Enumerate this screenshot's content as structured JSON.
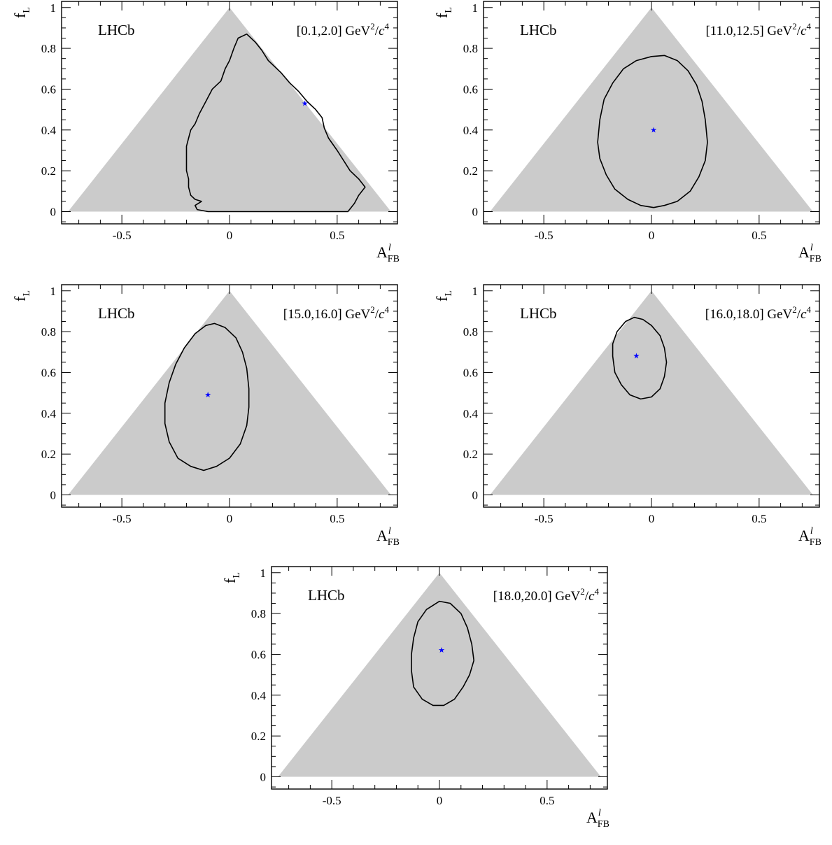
{
  "chart_data": [
    {
      "type": "contour",
      "experiment": "LHCb",
      "bin_label": "[0.1,2.0] GeV",
      "ylabel": "f",
      "ylabel_sub": "L",
      "xlabel": "A",
      "xlabel_sup": "l",
      "xlabel_sub": "FB",
      "xlim": [
        -0.78,
        0.78
      ],
      "ylim": [
        -0.06,
        1.03
      ],
      "x_ticks": [
        -0.5,
        0,
        0.5
      ],
      "x_tick_labels": [
        "-0.5",
        "0",
        "0.5"
      ],
      "y_ticks": [
        0,
        0.2,
        0.4,
        0.6,
        0.8,
        1
      ],
      "y_tick_labels": [
        "0",
        "0.2",
        "0.4",
        "0.6",
        "0.8",
        "1"
      ],
      "allowed_region": [
        [
          -0.75,
          0
        ],
        [
          0,
          1
        ],
        [
          0.75,
          0
        ]
      ],
      "best_fit": [
        0.35,
        0.53
      ],
      "contour": [
        [
          -0.1,
          0
        ],
        [
          0.55,
          0
        ],
        [
          0.58,
          0.04
        ],
        [
          0.6,
          0.08
        ],
        [
          0.63,
          0.12
        ],
        [
          0.6,
          0.16
        ],
        [
          0.56,
          0.2
        ],
        [
          0.53,
          0.25
        ],
        [
          0.5,
          0.3
        ],
        [
          0.46,
          0.36
        ],
        [
          0.44,
          0.41
        ],
        [
          0.43,
          0.46
        ],
        [
          0.4,
          0.5
        ],
        [
          0.36,
          0.54
        ],
        [
          0.32,
          0.59
        ],
        [
          0.28,
          0.63
        ],
        [
          0.24,
          0.68
        ],
        [
          0.18,
          0.74
        ],
        [
          0.15,
          0.79
        ],
        [
          0.12,
          0.83
        ],
        [
          0.08,
          0.87
        ],
        [
          0.04,
          0.85
        ],
        [
          0.02,
          0.8
        ],
        [
          0,
          0.74
        ],
        [
          -0.02,
          0.7
        ],
        [
          -0.04,
          0.64
        ],
        [
          -0.08,
          0.6
        ],
        [
          -0.11,
          0.54
        ],
        [
          -0.14,
          0.48
        ],
        [
          -0.16,
          0.43
        ],
        [
          -0.18,
          0.4
        ],
        [
          -0.19,
          0.36
        ],
        [
          -0.2,
          0.32
        ],
        [
          -0.2,
          0.28
        ],
        [
          -0.2,
          0.24
        ],
        [
          -0.2,
          0.2
        ],
        [
          -0.19,
          0.16
        ],
        [
          -0.19,
          0.12
        ],
        [
          -0.18,
          0.08
        ],
        [
          -0.16,
          0.06
        ],
        [
          -0.13,
          0.05
        ],
        [
          -0.16,
          0.03
        ],
        [
          -0.15,
          0.01
        ],
        [
          -0.1,
          0
        ]
      ]
    },
    {
      "type": "contour",
      "experiment": "LHCb",
      "bin_label": "[11.0,12.5] GeV",
      "ylabel": "f",
      "ylabel_sub": "L",
      "xlabel": "A",
      "xlabel_sup": "l",
      "xlabel_sub": "FB",
      "xlim": [
        -0.78,
        0.78
      ],
      "ylim": [
        -0.06,
        1.03
      ],
      "x_ticks": [
        -0.5,
        0,
        0.5
      ],
      "x_tick_labels": [
        "-0.5",
        "0",
        "0.5"
      ],
      "y_ticks": [
        0,
        0.2,
        0.4,
        0.6,
        0.8,
        1
      ],
      "y_tick_labels": [
        "0",
        "0.2",
        "0.4",
        "0.6",
        "0.8",
        "1"
      ],
      "allowed_region": [
        [
          -0.75,
          0
        ],
        [
          0,
          1
        ],
        [
          0.75,
          0
        ]
      ],
      "best_fit": [
        0.01,
        0.4
      ],
      "contour": [
        [
          0.0,
          0.76
        ],
        [
          0.06,
          0.765
        ],
        [
          0.12,
          0.74
        ],
        [
          0.17,
          0.69
        ],
        [
          0.21,
          0.62
        ],
        [
          0.235,
          0.54
        ],
        [
          0.25,
          0.45
        ],
        [
          0.26,
          0.34
        ],
        [
          0.25,
          0.25
        ],
        [
          0.22,
          0.17
        ],
        [
          0.18,
          0.1
        ],
        [
          0.12,
          0.05
        ],
        [
          0.06,
          0.03
        ],
        [
          0.01,
          0.02
        ],
        [
          -0.05,
          0.03
        ],
        [
          -0.11,
          0.06
        ],
        [
          -0.17,
          0.11
        ],
        [
          -0.21,
          0.18
        ],
        [
          -0.24,
          0.26
        ],
        [
          -0.25,
          0.34
        ],
        [
          -0.24,
          0.45
        ],
        [
          -0.22,
          0.55
        ],
        [
          -0.18,
          0.63
        ],
        [
          -0.13,
          0.7
        ],
        [
          -0.07,
          0.74
        ],
        [
          0.0,
          0.76
        ]
      ]
    },
    {
      "type": "contour",
      "experiment": "LHCb",
      "bin_label": "[15.0,16.0] GeV",
      "ylabel": "f",
      "ylabel_sub": "L",
      "xlabel": "A",
      "xlabel_sup": "l",
      "xlabel_sub": "FB",
      "xlim": [
        -0.78,
        0.78
      ],
      "ylim": [
        -0.06,
        1.03
      ],
      "x_ticks": [
        -0.5,
        0,
        0.5
      ],
      "x_tick_labels": [
        "-0.5",
        "0",
        "0.5"
      ],
      "y_ticks": [
        0,
        0.2,
        0.4,
        0.6,
        0.8,
        1
      ],
      "y_tick_labels": [
        "0",
        "0.2",
        "0.4",
        "0.6",
        "0.8",
        "1"
      ],
      "allowed_region": [
        [
          -0.75,
          0
        ],
        [
          0,
          1
        ],
        [
          0.75,
          0
        ]
      ],
      "best_fit": [
        -0.1,
        0.49
      ],
      "contour": [
        [
          -0.07,
          0.84
        ],
        [
          -0.02,
          0.82
        ],
        [
          0.03,
          0.77
        ],
        [
          0.06,
          0.7
        ],
        [
          0.08,
          0.62
        ],
        [
          0.09,
          0.52
        ],
        [
          0.09,
          0.43
        ],
        [
          0.08,
          0.34
        ],
        [
          0.05,
          0.25
        ],
        [
          0.0,
          0.18
        ],
        [
          -0.06,
          0.14
        ],
        [
          -0.12,
          0.12
        ],
        [
          -0.18,
          0.14
        ],
        [
          -0.24,
          0.18
        ],
        [
          -0.28,
          0.26
        ],
        [
          -0.3,
          0.35
        ],
        [
          -0.3,
          0.45
        ],
        [
          -0.28,
          0.55
        ],
        [
          -0.25,
          0.64
        ],
        [
          -0.21,
          0.72
        ],
        [
          -0.16,
          0.79
        ],
        [
          -0.11,
          0.83
        ],
        [
          -0.07,
          0.84
        ]
      ]
    },
    {
      "type": "contour",
      "experiment": "LHCb",
      "bin_label": "[16.0,18.0] GeV",
      "ylabel": "f",
      "ylabel_sub": "L",
      "xlabel": "A",
      "xlabel_sup": "l",
      "xlabel_sub": "FB",
      "xlim": [
        -0.78,
        0.78
      ],
      "ylim": [
        -0.06,
        1.03
      ],
      "x_ticks": [
        -0.5,
        0,
        0.5
      ],
      "x_tick_labels": [
        "-0.5",
        "0",
        "0.5"
      ],
      "y_ticks": [
        0,
        0.2,
        0.4,
        0.6,
        0.8,
        1
      ],
      "y_tick_labels": [
        "0",
        "0.2",
        "0.4",
        "0.6",
        "0.8",
        "1"
      ],
      "allowed_region": [
        [
          -0.75,
          0
        ],
        [
          0,
          1
        ],
        [
          0.75,
          0
        ]
      ],
      "best_fit": [
        -0.07,
        0.68
      ],
      "contour": [
        [
          -0.08,
          0.87
        ],
        [
          -0.04,
          0.86
        ],
        [
          0.0,
          0.83
        ],
        [
          0.04,
          0.78
        ],
        [
          0.06,
          0.72
        ],
        [
          0.07,
          0.65
        ],
        [
          0.06,
          0.58
        ],
        [
          0.04,
          0.52
        ],
        [
          0.0,
          0.48
        ],
        [
          -0.05,
          0.47
        ],
        [
          -0.1,
          0.49
        ],
        [
          -0.14,
          0.54
        ],
        [
          -0.17,
          0.6
        ],
        [
          -0.18,
          0.68
        ],
        [
          -0.18,
          0.74
        ],
        [
          -0.16,
          0.8
        ],
        [
          -0.12,
          0.85
        ],
        [
          -0.08,
          0.87
        ]
      ]
    },
    {
      "type": "contour",
      "experiment": "LHCb",
      "bin_label": "[18.0,20.0] GeV",
      "ylabel": "f",
      "ylabel_sub": "L",
      "xlabel": "A",
      "xlabel_sup": "l",
      "xlabel_sub": "FB",
      "xlim": [
        -0.78,
        0.78
      ],
      "ylim": [
        -0.06,
        1.03
      ],
      "x_ticks": [
        -0.5,
        0,
        0.5
      ],
      "x_tick_labels": [
        "-0.5",
        "0",
        "0.5"
      ],
      "y_ticks": [
        0,
        0.2,
        0.4,
        0.6,
        0.8,
        1
      ],
      "y_tick_labels": [
        "0",
        "0.2",
        "0.4",
        "0.6",
        "0.8",
        "1"
      ],
      "allowed_region": [
        [
          -0.75,
          0
        ],
        [
          0,
          1
        ],
        [
          0.75,
          0
        ]
      ],
      "best_fit": [
        0.01,
        0.62
      ],
      "contour": [
        [
          0.0,
          0.86
        ],
        [
          0.05,
          0.85
        ],
        [
          0.1,
          0.8
        ],
        [
          0.13,
          0.73
        ],
        [
          0.15,
          0.65
        ],
        [
          0.16,
          0.57
        ],
        [
          0.14,
          0.5
        ],
        [
          0.11,
          0.44
        ],
        [
          0.07,
          0.38
        ],
        [
          0.02,
          0.35
        ],
        [
          -0.03,
          0.35
        ],
        [
          -0.08,
          0.38
        ],
        [
          -0.12,
          0.44
        ],
        [
          -0.13,
          0.52
        ],
        [
          -0.13,
          0.6
        ],
        [
          -0.12,
          0.68
        ],
        [
          -0.1,
          0.76
        ],
        [
          -0.06,
          0.82
        ],
        [
          0.0,
          0.86
        ]
      ]
    }
  ],
  "colors": {
    "allowed_region": "#cbcbcb",
    "contour": "#000000",
    "best_fit": "#0000ff",
    "axes": "#000000"
  }
}
